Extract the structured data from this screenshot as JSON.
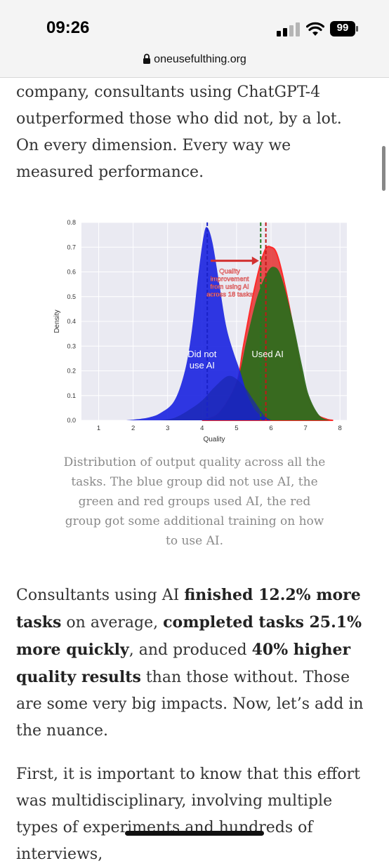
{
  "status": {
    "time": "09:26",
    "battery": "99"
  },
  "browser": {
    "url": "oneusefulthing.org"
  },
  "article": {
    "p1": "company, consultants using ChatGPT-4 outperformed those who did not, by a lot. On every dimension. Every way we measured performance.",
    "caption": "Distribution of output quality across all the tasks. The blue group did not use AI, the green and red groups used AI, the red group got some additional training on how to use AI.",
    "p2": {
      "t1": "Consultants using AI ",
      "b1": "finished 12.2% more tasks",
      "t2": " on average, ",
      "b2": "completed tasks 25.1% more quickly",
      "t3": ", and produced ",
      "b3": "40% higher quality results",
      "t4": " than those without. Those are some very big impacts. Now, let’s add in the nuance."
    },
    "p3": "First, it is important to know that this effort was multidisciplinary, involving multiple types of experiments and hundreds of interviews,"
  },
  "chart_data": {
    "type": "area",
    "xlabel": "Quality",
    "ylabel": "Density",
    "xlim": [
      0.5,
      8.2
    ],
    "ylim": [
      0,
      0.8
    ],
    "xticks": [
      "1",
      "2",
      "3",
      "4",
      "5",
      "6",
      "7",
      "8"
    ],
    "yticks": [
      "0.0",
      "0.1",
      "0.2",
      "0.3",
      "0.4",
      "0.5",
      "0.6",
      "0.7",
      "0.8"
    ],
    "series": [
      {
        "color": "#e53030",
        "mean": 5.85,
        "x": [
          4.0,
          4.5,
          5.0,
          5.2,
          5.5,
          5.8,
          6.0,
          6.2,
          6.5,
          6.8,
          7.0,
          7.3,
          7.6,
          7.8
        ],
        "y": [
          0.0,
          0.03,
          0.15,
          0.3,
          0.52,
          0.68,
          0.7,
          0.66,
          0.48,
          0.25,
          0.12,
          0.03,
          0.005,
          0.0
        ]
      },
      {
        "color": "#2e6b1c",
        "mean": 5.7,
        "x": [
          4.1,
          4.5,
          5.0,
          5.3,
          5.6,
          5.9,
          6.1,
          6.3,
          6.6,
          6.9,
          7.1,
          7.4,
          7.7
        ],
        "y": [
          0.0,
          0.03,
          0.15,
          0.33,
          0.5,
          0.6,
          0.62,
          0.58,
          0.42,
          0.22,
          0.1,
          0.02,
          0.0
        ]
      },
      {
        "color": "#1a22e0",
        "mean": 4.15,
        "x": [
          1.8,
          2.4,
          2.8,
          3.2,
          3.5,
          3.7,
          3.9,
          4.05,
          4.15,
          4.3,
          4.5,
          4.7,
          4.9,
          5.1,
          5.3,
          5.5,
          5.7,
          6.0
        ],
        "y": [
          0.0,
          0.01,
          0.03,
          0.08,
          0.2,
          0.36,
          0.6,
          0.75,
          0.78,
          0.72,
          0.55,
          0.38,
          0.28,
          0.2,
          0.11,
          0.05,
          0.02,
          0.0
        ]
      },
      {
        "color": "#1a26b0",
        "x": [
          2.8,
          3.2,
          3.6,
          4.0,
          4.4,
          4.8,
          5.2,
          5.5,
          5.8,
          6.0
        ],
        "y": [
          0.0,
          0.01,
          0.04,
          0.08,
          0.14,
          0.18,
          0.14,
          0.08,
          0.02,
          0.0
        ]
      }
    ],
    "annotations": {
      "blue": "Did not use AI",
      "ai": "Used AI",
      "arrow": "Quality improvement from using AI across 18 tasks"
    },
    "grid": true
  }
}
